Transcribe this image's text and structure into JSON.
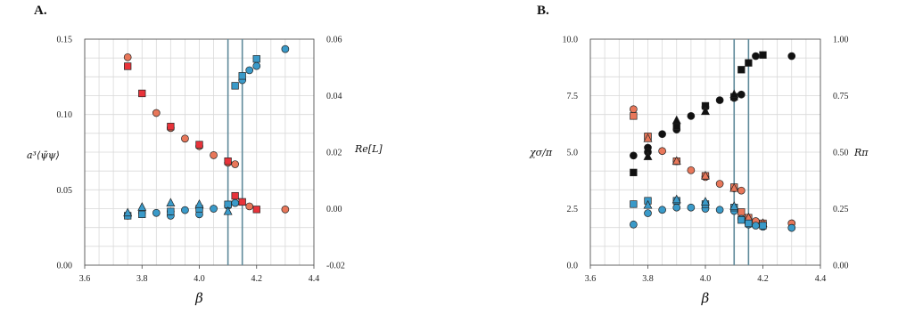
{
  "chart_data": [
    {
      "panel": "A.",
      "type": "scatter",
      "xlabel": "β",
      "ylabel_left": "a³⟨ψ̄ψ⟩",
      "ylabel_right": "Re[L]",
      "xlim": [
        3.6,
        4.4
      ],
      "ylim_left": [
        0.0,
        0.15
      ],
      "ylim_right": [
        -0.02,
        0.06
      ],
      "x_ticks": [
        "3.6",
        "3.8",
        "4.0",
        "4.2",
        "4.4"
      ],
      "y_ticks_left": [
        "0.00",
        "0.05",
        "0.10",
        "0.15"
      ],
      "y_ticks_right": [
        "-0.02",
        "0.00",
        "0.02",
        "0.04",
        "0.06"
      ],
      "vlines": [
        4.1,
        4.15
      ],
      "grid": true,
      "series": [
        {
          "marker": "circle",
          "color": "#e8775a",
          "axis": "left",
          "x": [
            3.75,
            3.85,
            3.9,
            3.95,
            4.0,
            4.05,
            4.1,
            4.125,
            4.175,
            4.3
          ],
          "y": [
            0.138,
            0.101,
            0.091,
            0.084,
            0.079,
            0.073,
            0.068,
            0.067,
            0.039,
            0.037
          ]
        },
        {
          "marker": "square",
          "color": "#e8333a",
          "axis": "left",
          "x": [
            3.75,
            3.8,
            3.9,
            4.0,
            4.1,
            4.125,
            4.15,
            4.2
          ],
          "y": [
            0.132,
            0.114,
            0.092,
            0.08,
            0.069,
            0.046,
            0.042,
            0.037
          ]
        },
        {
          "marker": "circle",
          "color": "#3a9ac9",
          "axis": "right",
          "x": [
            3.75,
            3.8,
            3.85,
            3.9,
            3.9,
            3.95,
            4.0,
            4.0,
            4.05,
            4.1,
            4.125,
            4.15,
            4.175,
            4.2,
            4.3
          ],
          "y": [
            -0.0025,
            -0.0015,
            -0.0015,
            -0.0025,
            -0.001,
            -0.0005,
            -0.002,
            0.0002,
            0.0,
            0.001,
            0.002,
            0.0455,
            0.049,
            0.0505,
            0.0565
          ]
        },
        {
          "marker": "square",
          "color": "#3a9ac9",
          "axis": "right",
          "x": [
            3.75,
            3.8,
            3.9,
            4.0,
            4.1,
            4.125,
            4.15,
            4.2
          ],
          "y": [
            -0.0025,
            -0.002,
            -0.001,
            0.0,
            0.0015,
            0.0435,
            0.047,
            0.053
          ]
        },
        {
          "marker": "triangle",
          "color": "#3a9ac9",
          "axis": "right",
          "x": [
            3.75,
            3.8,
            3.9,
            4.0,
            4.1
          ],
          "y": [
            -0.0015,
            0.0005,
            0.002,
            0.0015,
            -0.001
          ]
        }
      ]
    },
    {
      "panel": "B.",
      "type": "scatter",
      "xlabel": "β",
      "ylabel_left": "χσ/π",
      "ylabel_right": "Rπ",
      "xlim": [
        3.6,
        4.4
      ],
      "ylim_left": [
        0.0,
        10.0
      ],
      "ylim_right": [
        0.0,
        1.0
      ],
      "x_ticks": [
        "3.6",
        "3.8",
        "4.0",
        "4.2",
        "4.4"
      ],
      "y_ticks_left": [
        "0.0",
        "2.5",
        "5.0",
        "7.5",
        "10.0"
      ],
      "y_ticks_right": [
        "0.00",
        "0.25",
        "0.50",
        "0.75",
        "1.00"
      ],
      "vlines": [
        4.1,
        4.15
      ],
      "grid": true,
      "series": [
        {
          "marker": "circle",
          "color": "#111111",
          "axis": "right",
          "x": [
            3.75,
            3.8,
            3.8,
            3.85,
            3.9,
            3.95,
            4.0,
            4.05,
            4.1,
            4.125,
            4.175,
            4.3
          ],
          "y": [
            0.485,
            0.52,
            0.5,
            0.58,
            0.6,
            0.66,
            0.7,
            0.73,
            0.74,
            0.755,
            0.925,
            0.925
          ]
        },
        {
          "marker": "square",
          "color": "#111111",
          "axis": "right",
          "x": [
            3.75,
            3.8,
            3.9,
            4.0,
            4.1,
            4.125,
            4.15,
            4.2
          ],
          "y": [
            0.41,
            0.565,
            0.615,
            0.705,
            0.745,
            0.865,
            0.895,
            0.93
          ]
        },
        {
          "marker": "triangle",
          "color": "#111111",
          "axis": "right",
          "x": [
            3.8,
            3.9,
            4.0,
            4.1
          ],
          "y": [
            0.48,
            0.64,
            0.68,
            0.755
          ]
        },
        {
          "marker": "circle",
          "color": "#e8775a",
          "axis": "left",
          "x": [
            3.75,
            3.85,
            3.9,
            3.95,
            4.0,
            4.05,
            4.1,
            4.125,
            4.15,
            4.175,
            4.2,
            4.3
          ],
          "y": [
            6.9,
            5.05,
            4.6,
            4.2,
            3.9,
            3.6,
            3.4,
            3.3,
            2.0,
            1.95,
            1.85,
            1.85
          ]
        },
        {
          "marker": "square",
          "color": "#e8775a",
          "axis": "left",
          "x": [
            3.75,
            3.8,
            3.9,
            4.0,
            4.1,
            4.125,
            4.15,
            4.2
          ],
          "y": [
            6.6,
            5.7,
            4.6,
            3.95,
            3.45,
            2.35,
            2.1,
            1.85
          ]
        },
        {
          "marker": "triangle",
          "color": "#e8775a",
          "axis": "left",
          "x": [
            3.8,
            3.9,
            4.0,
            4.1,
            4.15,
            4.2
          ],
          "y": [
            5.6,
            4.6,
            3.95,
            3.4,
            2.1,
            1.85
          ]
        },
        {
          "marker": "circle",
          "color": "#3a9ac9",
          "axis": "left",
          "x": [
            3.75,
            3.8,
            3.85,
            3.9,
            3.95,
            4.0,
            4.05,
            4.1,
            4.125,
            4.15,
            4.175,
            4.2,
            4.3
          ],
          "y": [
            1.8,
            2.3,
            2.45,
            2.55,
            2.55,
            2.5,
            2.45,
            2.4,
            2.05,
            1.8,
            1.75,
            1.7,
            1.65
          ]
        },
        {
          "marker": "square",
          "color": "#3a9ac9",
          "axis": "left",
          "x": [
            3.75,
            3.8,
            3.9,
            4.0,
            4.1,
            4.125,
            4.15,
            4.2
          ],
          "y": [
            2.7,
            2.85,
            2.85,
            2.7,
            2.55,
            2.0,
            1.85,
            1.75
          ]
        },
        {
          "marker": "triangle",
          "color": "#3a9ac9",
          "axis": "left",
          "x": [
            3.8,
            3.9,
            4.0,
            4.1
          ],
          "y": [
            2.65,
            2.9,
            2.8,
            2.6
          ]
        }
      ]
    }
  ]
}
